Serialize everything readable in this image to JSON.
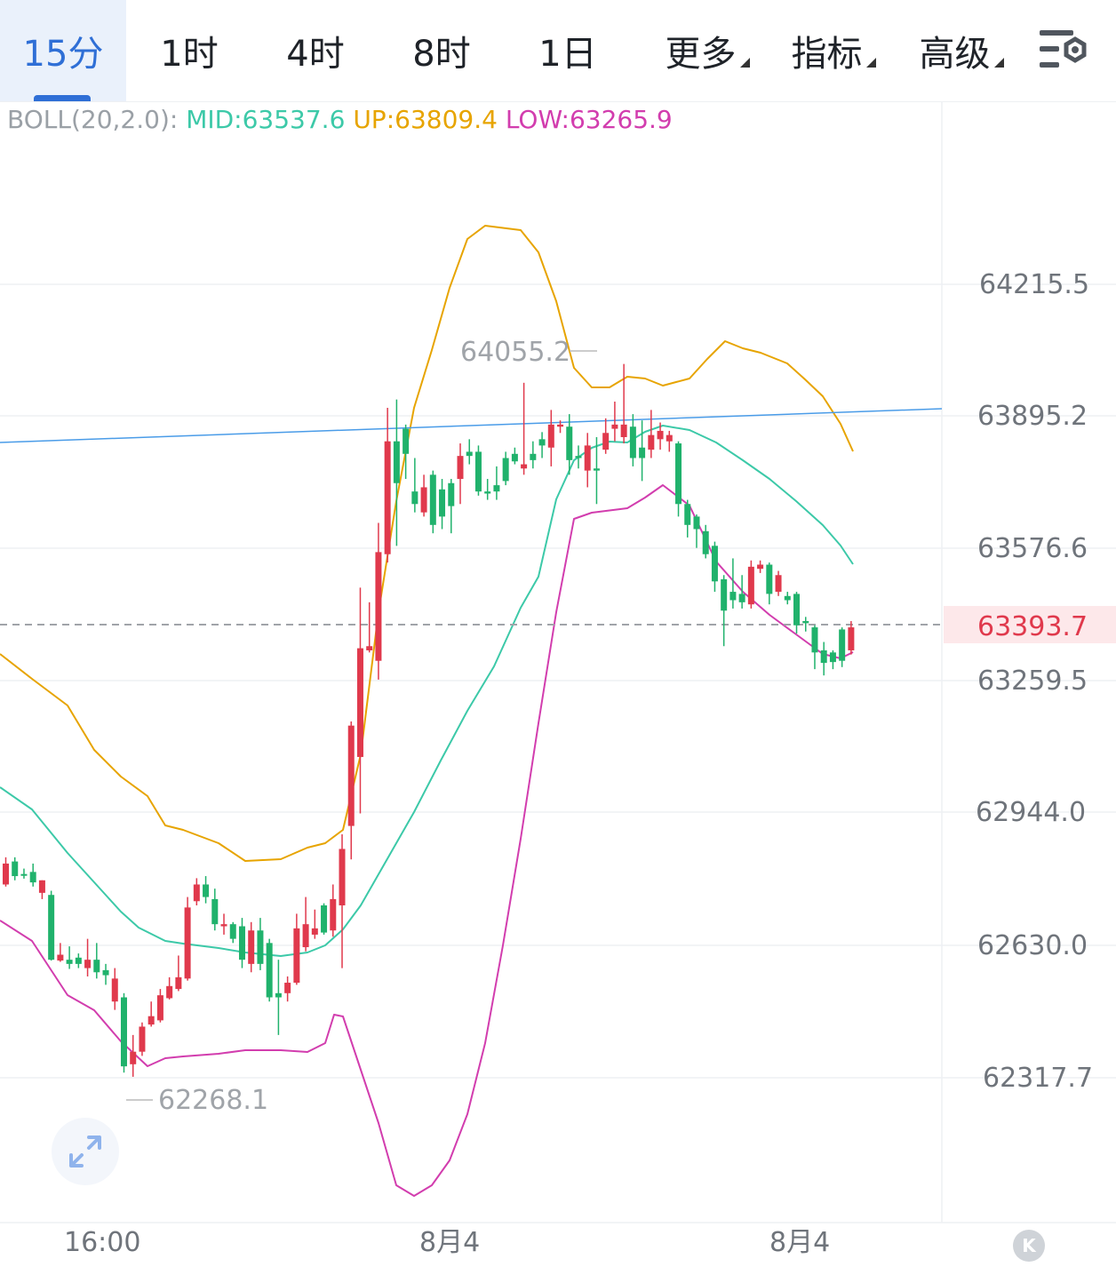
{
  "tabs": [
    {
      "label": "15分",
      "active": true
    },
    {
      "label": "1时"
    },
    {
      "label": "4时"
    },
    {
      "label": "8时"
    },
    {
      "label": "1日"
    },
    {
      "label": "更多",
      "dropdown": true
    },
    {
      "label": "指标",
      "dropdown": true
    },
    {
      "label": "高级",
      "dropdown": true
    }
  ],
  "settings_icon": "chart-settings-icon",
  "indicator": {
    "name": "BOLL(20,2.0):",
    "mid": "MID:63537.6",
    "up": "UP:63809.4",
    "low": "LOW:63265.9"
  },
  "colors": {
    "up_candle": "#e0394c",
    "down_candle": "#20b26c",
    "boll_mid": "#3cc9a8",
    "boll_up": "#e7a400",
    "boll_low": "#d23dae",
    "trend_line": "#4a9ce8",
    "active_tab": "#2f6fd6"
  },
  "chart_data": {
    "type": "candlestick",
    "y_axis_ticks": [
      "64215.5",
      "63895.2",
      "63576.6",
      "63259.5",
      "62944.0",
      "62630.0",
      "62317.7"
    ],
    "current_price": "63393.7",
    "high_marker": "64055.2",
    "low_marker": "62268.1",
    "x_labels": [
      "16:00",
      "8月4",
      "8月4"
    ],
    "ylim": [
      62000,
      64350
    ],
    "candles": [
      [
        62830,
        62780,
        62845,
        62775
      ],
      [
        62800,
        62835,
        62845,
        62790
      ],
      [
        62805,
        62805,
        62818,
        62794
      ],
      [
        62785,
        62810,
        62830,
        62775
      ],
      [
        62790,
        62760,
        62790,
        62745
      ],
      [
        62600,
        62755,
        62765,
        62598
      ],
      [
        62612,
        62598,
        62640,
        62595
      ],
      [
        62590,
        62600,
        62632,
        62578
      ],
      [
        62590,
        62605,
        62615,
        62580
      ],
      [
        62600,
        62580,
        62650,
        62560
      ],
      [
        62570,
        62600,
        62640,
        62555
      ],
      [
        62563,
        62575,
        62590,
        62540
      ],
      [
        62555,
        62500,
        62580,
        62480
      ],
      [
        62345,
        62510,
        62520,
        62330
      ],
      [
        62380,
        62350,
        62420,
        62320
      ],
      [
        62440,
        62380,
        62450,
        62370
      ],
      [
        62465,
        62445,
        62500,
        62440
      ],
      [
        62515,
        62455,
        62530,
        62450
      ],
      [
        62537,
        62508,
        62558,
        62505
      ],
      [
        62558,
        62530,
        62610,
        62525
      ],
      [
        62725,
        62555,
        62750,
        62550
      ],
      [
        62780,
        62740,
        62795,
        62730
      ],
      [
        62750,
        62780,
        62800,
        62735
      ],
      [
        62685,
        62745,
        62770,
        62670
      ],
      [
        62685,
        62680,
        62710,
        62660
      ],
      [
        62650,
        62685,
        62690,
        62640
      ],
      [
        62600,
        62680,
        62700,
        62580
      ],
      [
        62670,
        62590,
        62690,
        62570
      ],
      [
        62590,
        62670,
        62700,
        62575
      ],
      [
        62510,
        62640,
        62650,
        62500
      ],
      [
        62510,
        62520,
        62600,
        62420
      ],
      [
        62545,
        62520,
        62560,
        62500
      ],
      [
        62675,
        62545,
        62710,
        62540
      ],
      [
        62685,
        62630,
        62750,
        62620
      ],
      [
        62675,
        62660,
        62720,
        62650
      ],
      [
        62665,
        62730,
        62735,
        62660
      ],
      [
        62745,
        62670,
        62780,
        62655
      ],
      [
        62865,
        62730,
        62900,
        62580
      ],
      [
        63160,
        62920,
        63170,
        62840
      ],
      [
        63345,
        63085,
        63490,
        62950
      ],
      [
        63350,
        63340,
        63455,
        63335
      ],
      [
        63575,
        63315,
        63645,
        63270
      ],
      [
        63840,
        63570,
        63920,
        63550
      ],
      [
        63740,
        63840,
        63940,
        63590
      ],
      [
        63810,
        63870,
        63880,
        63750
      ],
      [
        63690,
        63720,
        63800,
        63670
      ],
      [
        63730,
        63670,
        63760,
        63660
      ],
      [
        63640,
        63760,
        63770,
        63620
      ],
      [
        63660,
        63725,
        63750,
        63630
      ],
      [
        63685,
        63740,
        63750,
        63620
      ],
      [
        63805,
        63750,
        63835,
        63690
      ],
      [
        63805,
        63815,
        63845,
        63785
      ],
      [
        63720,
        63815,
        63830,
        63710
      ],
      [
        63715,
        63720,
        63750,
        63700
      ],
      [
        63720,
        63735,
        63780,
        63700
      ],
      [
        63745,
        63800,
        63815,
        63735
      ],
      [
        63792,
        63810,
        63825,
        63785
      ],
      [
        63785,
        63775,
        63980,
        63760
      ],
      [
        63795,
        63810,
        63840,
        63775
      ],
      [
        63830,
        63845,
        63862,
        63800
      ],
      [
        63880,
        63825,
        63915,
        63780
      ],
      [
        63880,
        63875,
        63890,
        63860
      ],
      [
        63795,
        63875,
        63905,
        63760
      ],
      [
        63800,
        63805,
        63830,
        63775
      ],
      [
        63830,
        63770,
        63860,
        63730
      ],
      [
        63770,
        63775,
        63850,
        63690
      ],
      [
        63860,
        63820,
        63895,
        63810
      ],
      [
        63880,
        63870,
        63935,
        63840
      ],
      [
        63880,
        63850,
        64025,
        63835
      ],
      [
        63800,
        63875,
        63905,
        63780
      ],
      [
        63800,
        63825,
        63890,
        63745
      ],
      [
        63855,
        63820,
        63915,
        63800
      ],
      [
        63865,
        63845,
        63885,
        63820
      ],
      [
        63855,
        63840,
        63865,
        63815
      ],
      [
        63690,
        63835,
        63840,
        63660
      ],
      [
        63640,
        63690,
        63700,
        63610
      ],
      [
        63630,
        63660,
        63665,
        63585
      ],
      [
        63570,
        63625,
        63640,
        63560
      ],
      [
        63505,
        63590,
        63600,
        63480
      ],
      [
        63435,
        63510,
        63520,
        63350
      ],
      [
        63460,
        63480,
        63560,
        63440
      ],
      [
        63455,
        63475,
        63520,
        63440
      ],
      [
        63540,
        63450,
        63555,
        63440
      ],
      [
        63545,
        63535,
        63555,
        63525
      ],
      [
        63475,
        63545,
        63550,
        63450
      ],
      [
        63520,
        63480,
        63530,
        63470
      ],
      [
        63460,
        63470,
        63480,
        63450
      ],
      [
        63400,
        63475,
        63480,
        63380
      ],
      [
        63405,
        63410,
        63420,
        63385
      ],
      [
        63335,
        63395,
        63400,
        63295
      ],
      [
        63310,
        63340,
        63360,
        63280
      ],
      [
        63312,
        63335,
        63340,
        63295
      ],
      [
        63315,
        63390,
        63395,
        63300
      ],
      [
        63395,
        63340,
        63410,
        63330
      ]
    ],
    "boll_mid_path": [
      [
        0,
        772
      ],
      [
        36,
        797
      ],
      [
        76,
        846
      ],
      [
        116,
        890
      ],
      [
        136,
        912
      ],
      [
        156,
        930
      ],
      [
        186,
        945
      ],
      [
        206,
        948
      ],
      [
        246,
        953
      ],
      [
        276,
        958
      ],
      [
        316,
        962
      ],
      [
        346,
        958
      ],
      [
        366,
        950
      ],
      [
        386,
        932
      ],
      [
        406,
        905
      ],
      [
        426,
        870
      ],
      [
        446,
        835
      ],
      [
        466,
        800
      ],
      [
        496,
        742
      ],
      [
        526,
        686
      ],
      [
        556,
        636
      ],
      [
        586,
        570
      ],
      [
        606,
        535
      ],
      [
        626,
        448
      ],
      [
        646,
        404
      ],
      [
        666,
        390
      ],
      [
        686,
        383
      ],
      [
        706,
        384
      ],
      [
        726,
        372
      ],
      [
        746,
        365
      ],
      [
        776,
        370
      ],
      [
        806,
        384
      ],
      [
        836,
        404
      ],
      [
        866,
        425
      ],
      [
        896,
        450
      ],
      [
        926,
        477
      ],
      [
        946,
        500
      ],
      [
        960,
        521
      ]
    ],
    "boll_up_path": [
      [
        0,
        622
      ],
      [
        36,
        650
      ],
      [
        76,
        680
      ],
      [
        106,
        730
      ],
      [
        136,
        760
      ],
      [
        166,
        782
      ],
      [
        186,
        815
      ],
      [
        206,
        820
      ],
      [
        246,
        835
      ],
      [
        276,
        855
      ],
      [
        316,
        853
      ],
      [
        346,
        840
      ],
      [
        366,
        835
      ],
      [
        386,
        820
      ],
      [
        406,
        735
      ],
      [
        426,
        575
      ],
      [
        446,
        450
      ],
      [
        466,
        345
      ],
      [
        486,
        280
      ],
      [
        506,
        210
      ],
      [
        526,
        155
      ],
      [
        546,
        140
      ],
      [
        586,
        145
      ],
      [
        606,
        170
      ],
      [
        626,
        225
      ],
      [
        646,
        300
      ],
      [
        666,
        322
      ],
      [
        686,
        322
      ],
      [
        706,
        310
      ],
      [
        726,
        312
      ],
      [
        746,
        320
      ],
      [
        776,
        312
      ],
      [
        796,
        290
      ],
      [
        816,
        270
      ],
      [
        836,
        278
      ],
      [
        856,
        283
      ],
      [
        886,
        295
      ],
      [
        906,
        313
      ],
      [
        926,
        332
      ],
      [
        946,
        363
      ],
      [
        960,
        394
      ]
    ],
    "boll_low_path": [
      [
        0,
        922
      ],
      [
        36,
        945
      ],
      [
        76,
        1006
      ],
      [
        106,
        1023
      ],
      [
        136,
        1058
      ],
      [
        166,
        1086
      ],
      [
        186,
        1077
      ],
      [
        206,
        1075
      ],
      [
        246,
        1072
      ],
      [
        276,
        1068
      ],
      [
        316,
        1068
      ],
      [
        346,
        1070
      ],
      [
        366,
        1060
      ],
      [
        376,
        1028
      ],
      [
        386,
        1030
      ],
      [
        406,
        1090
      ],
      [
        426,
        1150
      ],
      [
        446,
        1220
      ],
      [
        466,
        1232
      ],
      [
        486,
        1220
      ],
      [
        506,
        1192
      ],
      [
        526,
        1140
      ],
      [
        546,
        1060
      ],
      [
        566,
        950
      ],
      [
        586,
        830
      ],
      [
        606,
        700
      ],
      [
        626,
        575
      ],
      [
        646,
        470
      ],
      [
        666,
        463
      ],
      [
        706,
        458
      ],
      [
        726,
        446
      ],
      [
        746,
        432
      ],
      [
        776,
        455
      ],
      [
        806,
        518
      ],
      [
        836,
        552
      ],
      [
        866,
        578
      ],
      [
        896,
        600
      ],
      [
        926,
        622
      ],
      [
        946,
        627
      ],
      [
        960,
        620
      ]
    ],
    "trend_line": [
      [
        0,
        384
      ],
      [
        1060,
        346
      ]
    ],
    "gridlines_y": [
      206,
      354,
      503,
      652,
      800,
      950,
      1099
    ],
    "dashed_price_y": 589
  },
  "expand_icon": "expand-icon",
  "k_badge": "K"
}
